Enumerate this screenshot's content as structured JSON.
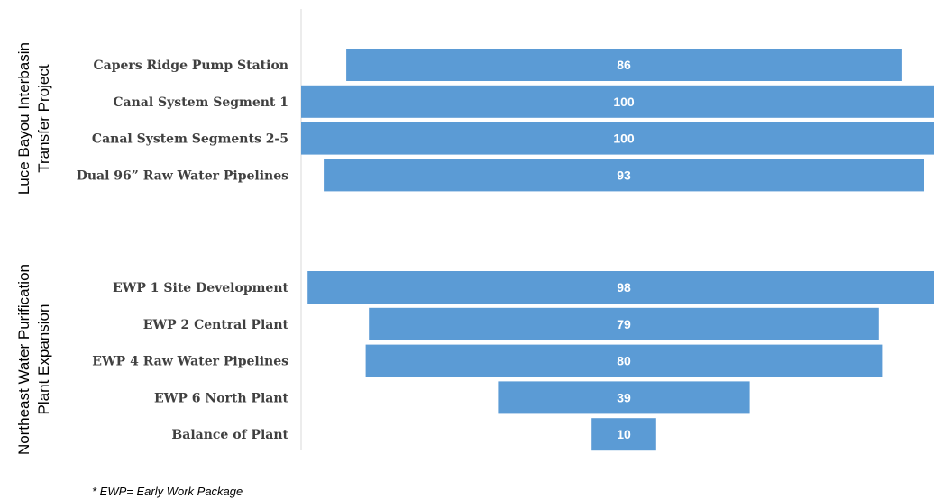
{
  "chart_data": {
    "type": "bar",
    "orientation": "horizontal",
    "bar_alignment": "centered",
    "title": "",
    "xlabel": "",
    "ylabel": "",
    "xlim": [
      0,
      100
    ],
    "bar_color": "#5b9bd5",
    "groups": [
      {
        "name_lines": [
          "Luce Bayou Interbasin",
          "Transfer Project"
        ],
        "categories": [
          "Capers Ridge Pump Station",
          "Canal System Segment 1",
          "Canal System Segments 2-5",
          "Dual 96” Raw Water Pipelines"
        ],
        "values": [
          86,
          100,
          100,
          93
        ]
      },
      {
        "name_lines": [
          "Northeast Water Purification",
          "Plant Expansion"
        ],
        "categories": [
          "EWP 1 Site Development",
          "EWP 2 Central Plant",
          "EWP 4 Raw Water Pipelines",
          "EWP 6 North Plant",
          "Balance of Plant"
        ],
        "values": [
          98,
          79,
          80,
          39,
          10
        ]
      }
    ],
    "footnote": "* EWP= Early Work Package"
  }
}
